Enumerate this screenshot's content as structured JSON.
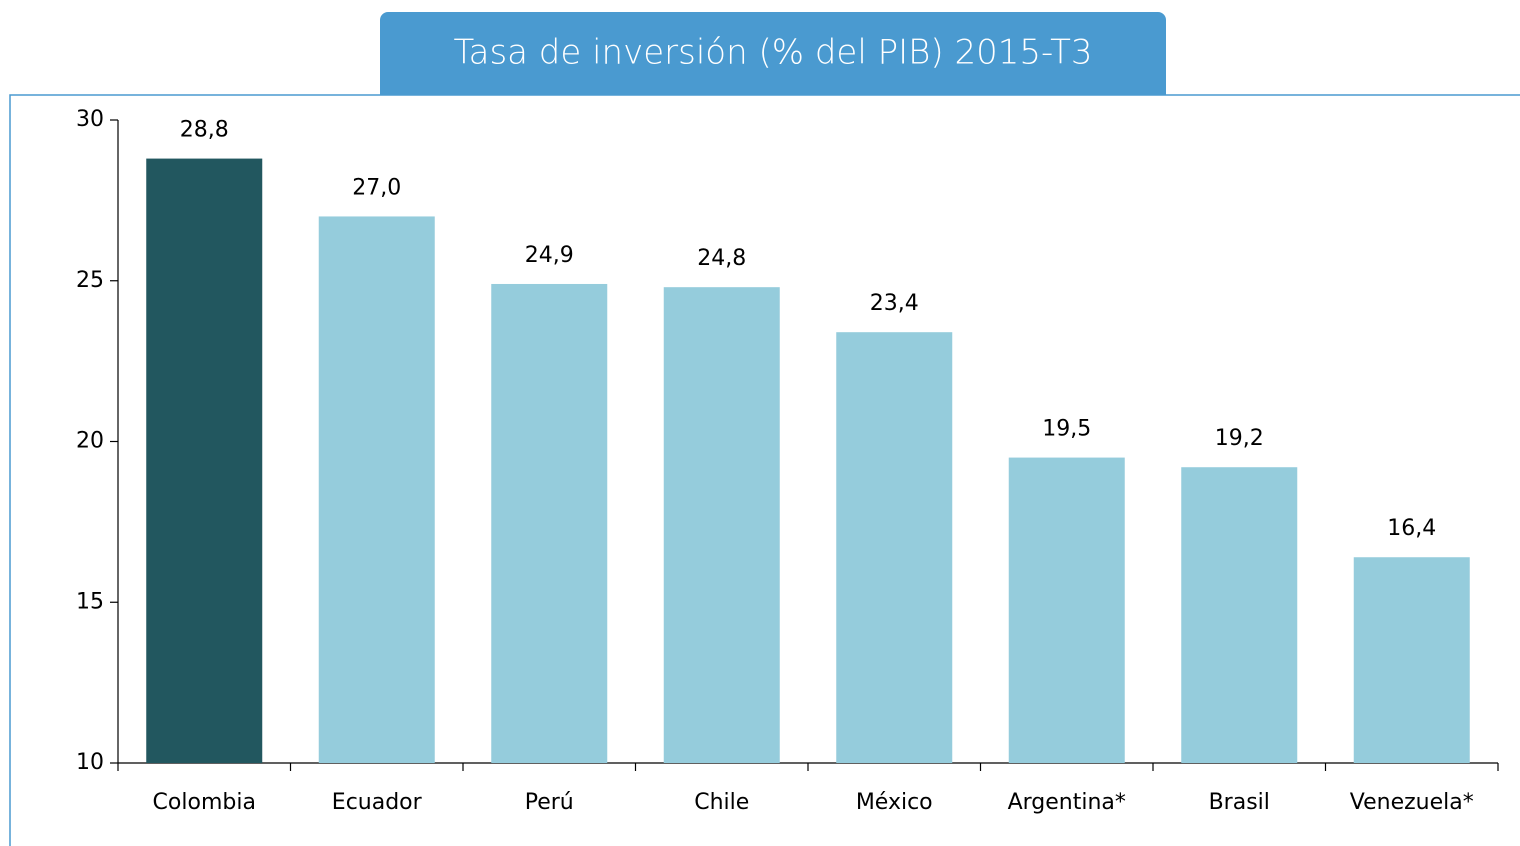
{
  "chart_data": {
    "type": "bar",
    "title": "Tasa de inversión (% del PIB) 2015-T3",
    "categories": [
      "Colombia",
      "Ecuador",
      "Perú",
      "Chile",
      "México",
      "Argentina*",
      "Brasil",
      "Venezuela*"
    ],
    "values": [
      28.8,
      27.0,
      24.9,
      24.8,
      23.4,
      19.5,
      19.2,
      16.4
    ],
    "value_labels": [
      "28,8",
      "27,0",
      "24,9",
      "24,8",
      "23,4",
      "19,5",
      "19,2",
      "16,4"
    ],
    "colors": [
      "#22575f",
      "#95ccdc",
      "#95ccdc",
      "#95ccdc",
      "#95ccdc",
      "#95ccdc",
      "#95ccdc",
      "#95ccdc"
    ],
    "ylim": [
      10,
      30
    ],
    "yticks": [
      10,
      15,
      20,
      25,
      30
    ],
    "grid": false
  }
}
